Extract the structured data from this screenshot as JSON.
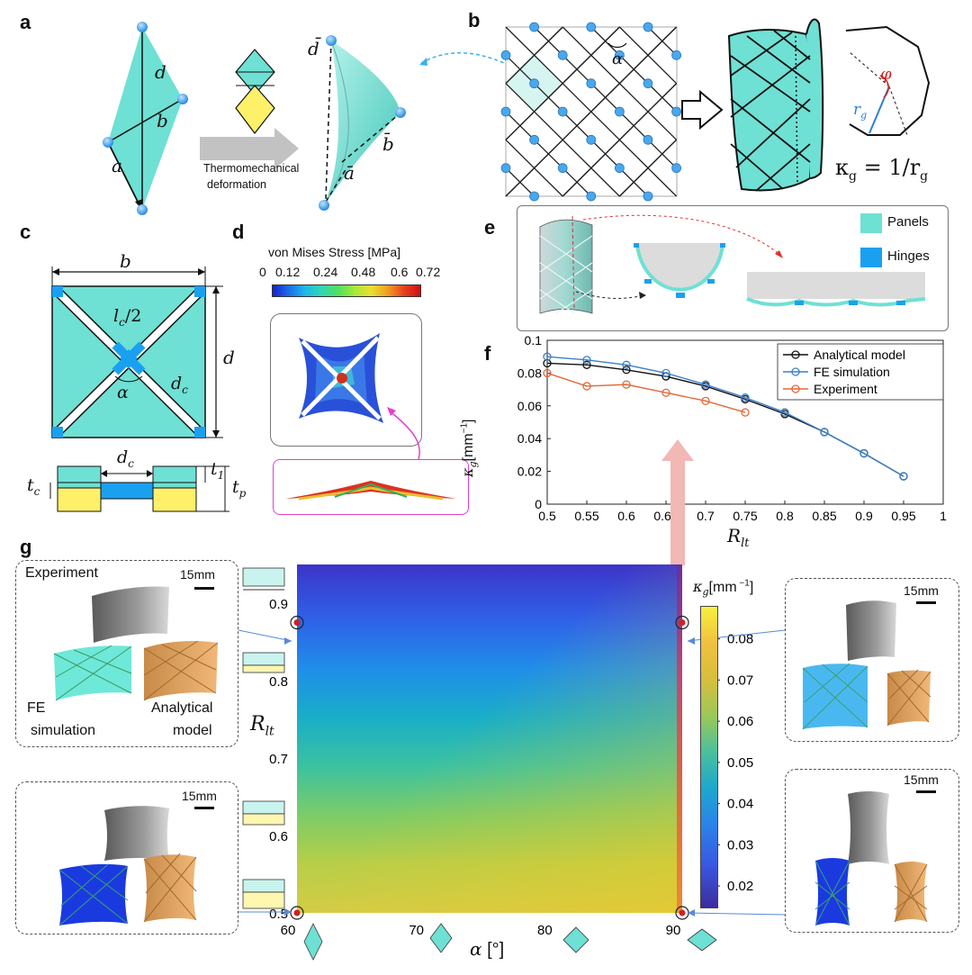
{
  "panels": {
    "a": "a",
    "b": "b",
    "c": "c",
    "d": "d",
    "e": "e",
    "f": "f",
    "g": "g"
  },
  "panel_a": {
    "label_d": "d",
    "label_b": "b",
    "label_a": "a",
    "label_dbar": "d̄",
    "label_bbar": "b̄",
    "label_abar": "ā",
    "arrow_caption_line1": "Thermomechanical",
    "arrow_caption_line2": "deformation"
  },
  "panel_b": {
    "alpha": "α",
    "phi": "φ",
    "rg": "r",
    "rg_sub": "g",
    "kappa_formula": "κ",
    "kappa_sub": "g",
    "kappa_rhs": " = 1/r",
    "kappa_rhs_sub": "g"
  },
  "panel_c": {
    "b": "b",
    "d": "d",
    "lc_half": "l",
    "lc_sub": "c",
    "lc_rest": "/2",
    "alpha": "α",
    "dc": "d",
    "dc_sub": "c",
    "dc2": "d",
    "dc2_sub": "c",
    "tc": "t",
    "tc_sub": "c",
    "t1": "t",
    "t1_sub": "1",
    "tp": "t",
    "tp_sub": "p"
  },
  "panel_d": {
    "title": "von Mises Stress [MPa]",
    "ticks": [
      "0",
      "0.12",
      "0.24",
      "0.48",
      "0.6",
      "0.72"
    ]
  },
  "panel_e": {
    "legend_panels": "Panels",
    "legend_hinges": "Hinges",
    "color_panels": "#6fe0d4",
    "color_hinges": "#1aa0f0"
  },
  "chart_data": [
    {
      "type": "line",
      "id": "f",
      "xlabel": "R",
      "xlabel_sub": "lt",
      "ylabel": "κ",
      "ylabel_sub": "g",
      "ylabel_unit": "[mm",
      "ylabel_unit_exp": "−1",
      "ylabel_unit_close": "]",
      "xlim": [
        0.5,
        1
      ],
      "ylim": [
        0,
        0.1
      ],
      "xticks": [
        "0.5",
        "0.55",
        "0.6",
        "0.65",
        "0.7",
        "0.75",
        "0.8",
        "0.85",
        "0.9",
        "0.95",
        "1"
      ],
      "yticks": [
        "0",
        "0.02",
        "0.04",
        "0.06",
        "0.08",
        "0.1"
      ],
      "series": [
        {
          "name": "Analytical model",
          "color": "#111111",
          "x": [
            0.5,
            0.55,
            0.6,
            0.65,
            0.7,
            0.75,
            0.8,
            0.85,
            0.9,
            0.95
          ],
          "y": [
            0.086,
            0.085,
            0.082,
            0.078,
            0.072,
            0.064,
            0.055,
            0.044,
            0.031,
            0.017
          ]
        },
        {
          "name": "FE simulation",
          "color": "#3c7fc8",
          "x": [
            0.5,
            0.55,
            0.6,
            0.65,
            0.7,
            0.75,
            0.8,
            0.85,
            0.9,
            0.95
          ],
          "y": [
            0.09,
            0.088,
            0.085,
            0.08,
            0.073,
            0.065,
            0.056,
            0.044,
            0.031,
            0.017
          ]
        },
        {
          "name": "Experiment",
          "color": "#e06a3a",
          "x": [
            0.5,
            0.55,
            0.6,
            0.65,
            0.7,
            0.75
          ],
          "y": [
            0.08,
            0.072,
            0.073,
            0.068,
            0.063,
            0.056
          ]
        }
      ]
    },
    {
      "type": "heatmap",
      "id": "g",
      "xlabel": "α",
      "xlabel_unit": " [°]",
      "ylabel": "R",
      "ylabel_sub": "lt",
      "xlim": [
        60,
        90
      ],
      "ylim": [
        0.5,
        0.95
      ],
      "xticks": [
        "60",
        "70",
        "80",
        "90"
      ],
      "yticks": [
        "0.5",
        "0.6",
        "0.7",
        "0.8",
        "0.9"
      ],
      "colorbar_title": "κ",
      "colorbar_sub": "g",
      "colorbar_unit": "[mm",
      "colorbar_unit_exp": " −1",
      "colorbar_close": "]",
      "colorbar_ticks": [
        "0.02",
        "0.03",
        "0.04",
        "0.05",
        "0.06",
        "0.07",
        "0.08"
      ],
      "colorbar_range": [
        0.015,
        0.088
      ],
      "marked_points": [
        {
          "alpha": 60,
          "R": 0.875
        },
        {
          "alpha": 90,
          "R": 0.875
        },
        {
          "alpha": 60,
          "R": 0.5
        },
        {
          "alpha": 90,
          "R": 0.5
        }
      ]
    }
  ],
  "panel_g": {
    "inset_tl": {
      "experiment": "Experiment",
      "scale": "15mm",
      "fe_line1": "FE",
      "fe_line2": "simulation",
      "an_line1": "Analytical",
      "an_line2": "model"
    },
    "inset_bl": {
      "scale": "15mm"
    },
    "inset_tr": {
      "scale": "15mm"
    },
    "inset_br": {
      "scale": "15mm"
    }
  }
}
